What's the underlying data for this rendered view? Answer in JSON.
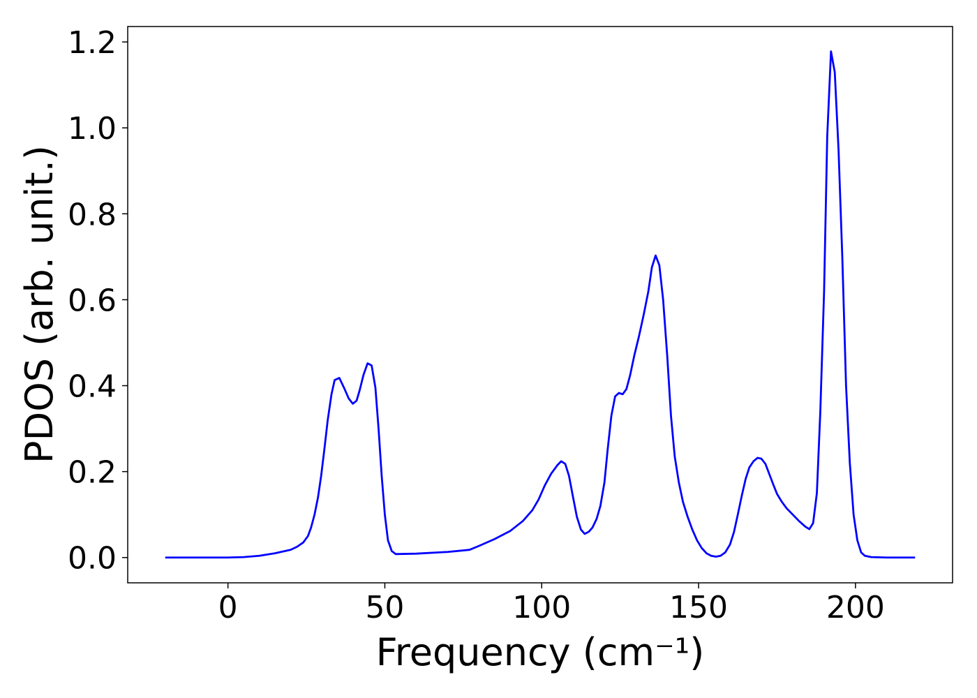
{
  "chart_data": {
    "type": "line",
    "xlabel": "Frequency (cm⁻¹)",
    "ylabel": "PDOS (arb. unit.)",
    "x": [
      -20,
      0,
      5,
      10,
      15,
      20,
      22,
      24,
      25.5,
      26.5,
      27.6,
      28.7,
      29.7,
      30.7,
      31.8,
      33,
      34,
      35.5,
      37,
      38.5,
      39.8,
      41,
      42,
      43.2,
      44.5,
      45.8,
      47,
      48,
      49,
      50,
      51,
      52.2,
      53.5,
      60,
      70,
      77,
      80,
      85,
      90,
      94,
      97,
      99,
      101,
      103,
      105,
      106.2,
      107.5,
      108.7,
      110,
      111.2,
      112.5,
      113.7,
      115,
      116.2,
      117.5,
      118.7,
      120,
      121,
      122.2,
      123.4,
      124.6,
      125.8,
      127,
      128.2,
      129.5,
      131,
      132.5,
      134,
      135.1,
      136.3,
      137.5,
      138.7,
      140,
      141.2,
      142.4,
      143.7,
      145,
      146.5,
      148,
      149.5,
      151,
      152.5,
      154,
      155.5,
      157,
      158.5,
      160,
      161.3,
      162.5,
      163.8,
      165,
      166.2,
      167.5,
      168.8,
      170,
      171.3,
      172.5,
      173.8,
      175,
      176.5,
      178,
      180,
      182,
      184,
      185.3,
      186.5,
      187.7,
      188.8,
      190,
      191,
      192.2,
      193.4,
      194.6,
      195.8,
      197,
      198.2,
      199.4,
      200.6,
      201.8,
      203,
      205,
      210,
      219
    ],
    "series": [
      {
        "name": "PDOS",
        "color": "#0000ff",
        "values": [
          0,
          0,
          0.001,
          0.004,
          0.01,
          0.018,
          0.025,
          0.035,
          0.05,
          0.07,
          0.1,
          0.14,
          0.19,
          0.25,
          0.32,
          0.38,
          0.413,
          0.418,
          0.395,
          0.37,
          0.358,
          0.365,
          0.39,
          0.425,
          0.452,
          0.447,
          0.395,
          0.3,
          0.19,
          0.1,
          0.04,
          0.015,
          0.008,
          0.009,
          0.013,
          0.018,
          0.027,
          0.043,
          0.062,
          0.085,
          0.11,
          0.135,
          0.168,
          0.195,
          0.215,
          0.224,
          0.218,
          0.19,
          0.14,
          0.095,
          0.065,
          0.055,
          0.06,
          0.07,
          0.09,
          0.12,
          0.175,
          0.25,
          0.33,
          0.375,
          0.383,
          0.38,
          0.392,
          0.425,
          0.47,
          0.515,
          0.565,
          0.62,
          0.675,
          0.703,
          0.68,
          0.6,
          0.47,
          0.33,
          0.235,
          0.175,
          0.13,
          0.095,
          0.065,
          0.04,
          0.022,
          0.01,
          0.004,
          0.002,
          0.004,
          0.012,
          0.03,
          0.06,
          0.1,
          0.145,
          0.183,
          0.21,
          0.224,
          0.232,
          0.23,
          0.218,
          0.195,
          0.17,
          0.148,
          0.13,
          0.115,
          0.1,
          0.085,
          0.072,
          0.066,
          0.08,
          0.15,
          0.34,
          0.62,
          0.98,
          1.178,
          1.13,
          0.95,
          0.7,
          0.4,
          0.22,
          0.1,
          0.04,
          0.012,
          0.004,
          0.001,
          0,
          0
        ]
      }
    ],
    "xlim": [
      -31.95,
      230.95
    ],
    "ylim": [
      -0.0589,
      1.2359
    ],
    "xticks": [
      0,
      50,
      100,
      150,
      200
    ],
    "yticks": [
      {
        "value": 0,
        "label": "0.0"
      },
      {
        "value": 0.2,
        "label": "0.2"
      },
      {
        "value": 0.4,
        "label": "0.4"
      },
      {
        "value": 0.6,
        "label": "0.6"
      },
      {
        "value": 0.8,
        "label": "0.8"
      },
      {
        "value": 1.0,
        "label": "1.0"
      },
      {
        "value": 1.2,
        "label": "1.2"
      }
    ]
  }
}
